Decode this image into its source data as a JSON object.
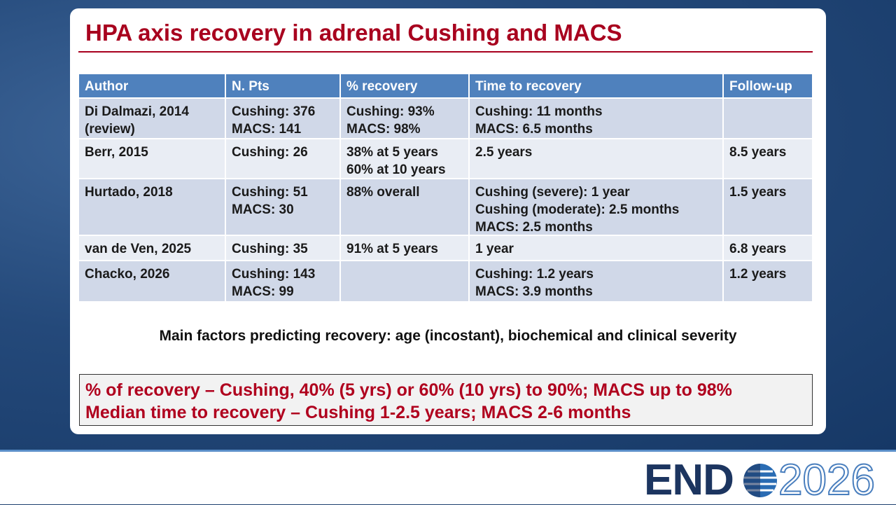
{
  "title": "HPA axis recovery in adrenal Cushing and MACS",
  "table": {
    "header": [
      "Author",
      "N. Pts",
      "% recovery",
      "Time to recovery",
      "Follow-up"
    ],
    "rows": [
      [
        [
          "Di Dalmazi, 2014",
          "(review)"
        ],
        [
          "Cushing: 376",
          "MACS: 141"
        ],
        [
          "Cushing: 93%",
          "MACS: 98%"
        ],
        [
          "Cushing: 11 months",
          "MACS: 6.5 months"
        ],
        null
      ],
      [
        [
          "Berr, 2015"
        ],
        [
          "Cushing: 26"
        ],
        [
          "38% at 5 years",
          "60% at 10 years"
        ],
        [
          "2.5 years"
        ],
        [
          "8.5 years"
        ]
      ],
      [
        [
          "Hurtado, 2018"
        ],
        [
          "Cushing: 51",
          "MACS: 30"
        ],
        [
          "88% overall"
        ],
        [
          "Cushing (severe): 1 year",
          "Cushing (moderate): 2.5 months",
          "MACS: 2.5 months"
        ],
        [
          "1.5 years"
        ]
      ],
      [
        [
          "van de Ven, 2025"
        ],
        [
          "Cushing: 35"
        ],
        [
          "91% at 5 years"
        ],
        [
          "1 year"
        ],
        [
          "6.8 years"
        ]
      ],
      [
        [
          "Chacko, 2026"
        ],
        [
          "Cushing: 143",
          "MACS: 99"
        ],
        null,
        [
          "Cushing: 1.2 years",
          "MACS: 3.9 months"
        ],
        [
          "1.2 years"
        ]
      ]
    ]
  },
  "note": "Main factors predicting recovery: age (incostant), biochemical and clinical severity",
  "summary": [
    "% of recovery – Cushing, 40% (5 yrs) or 60% (10 yrs) to 90%; MACS up to 98%",
    "Median time to recovery – Cushing 1-2.5 years; MACS 2-6 months"
  ],
  "logo": {
    "name": "END",
    "year": "2026"
  }
}
